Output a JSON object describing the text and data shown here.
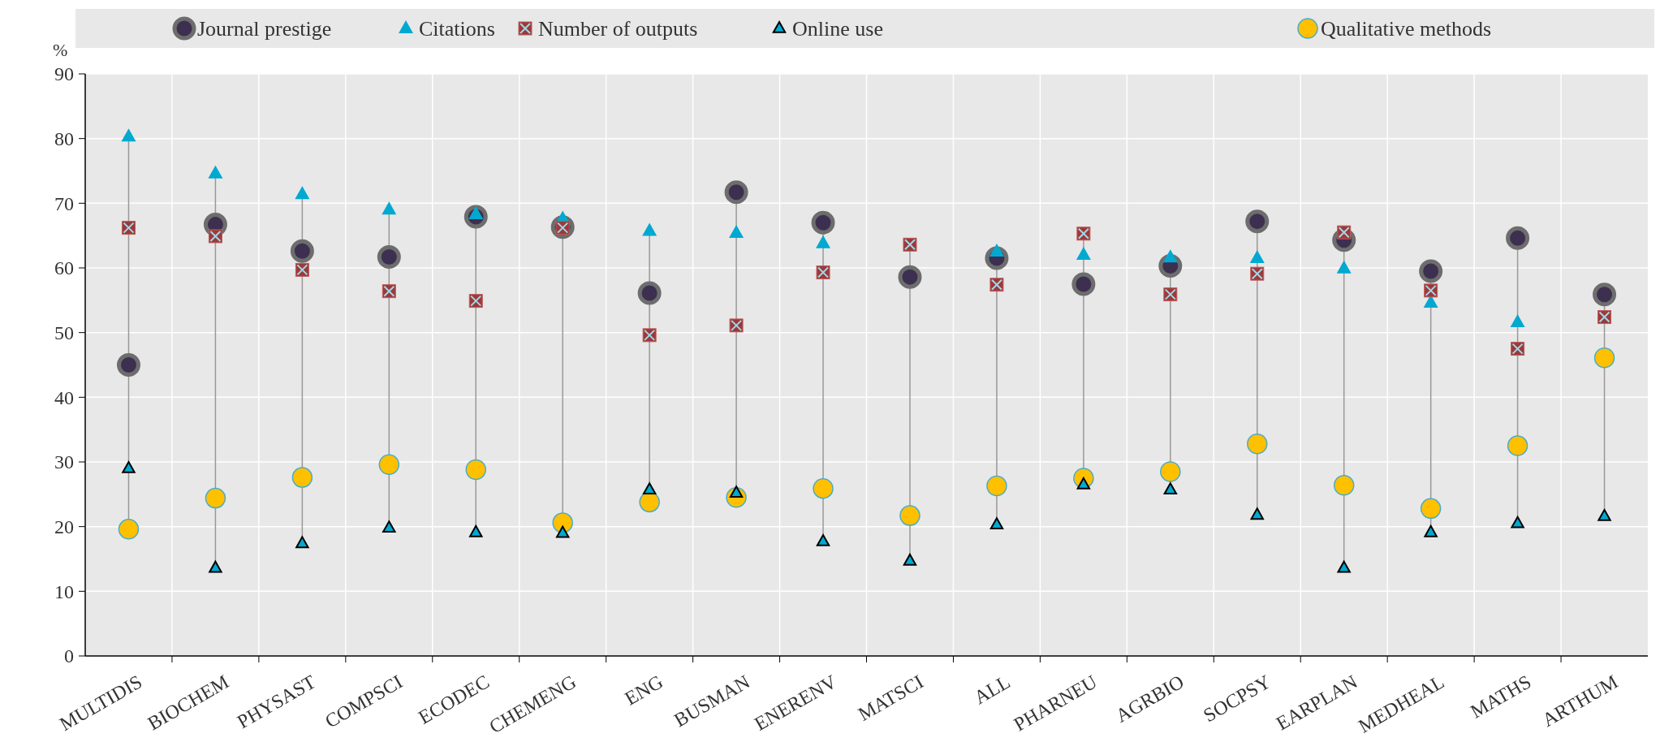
{
  "chart_data": {
    "type": "scatter",
    "ylabel": "%",
    "categories": [
      "MULTIDIS",
      "BIOCHEM",
      "PHYSAST",
      "COMPSCI",
      "ECODEC",
      "CHEMENG",
      "ENG",
      "BUSMAN",
      "ENERENV",
      "MATSCI",
      "ALL",
      "PHARNEU",
      "AGRBIO",
      "SOCPSY",
      "EARPLAN",
      "MEDHEAL",
      "MATHS",
      "ARTHUM"
    ],
    "series": [
      {
        "name": "Journal prestige",
        "color": "#3d2f50",
        "marker": "circle",
        "values": [
          45,
          66.7,
          62.6,
          61.7,
          67.9,
          66.3,
          56.1,
          71.7,
          67,
          58.6,
          61.5,
          57.5,
          60.3,
          67.2,
          64.3,
          59.5,
          64.6,
          55.9
        ]
      },
      {
        "name": "Citations",
        "color": "#00a9d0",
        "marker": "triangle",
        "values": [
          80.3,
          74.6,
          71.4,
          69,
          68.3,
          67.6,
          65.7,
          65.4,
          63.8,
          null,
          62.5,
          62,
          61.6,
          61.5,
          59.9,
          54.6,
          51.6,
          null
        ]
      },
      {
        "name": "Number of outputs",
        "color": "#9b3a3a",
        "marker": "square",
        "values": [
          66.2,
          64.9,
          59.7,
          56.4,
          54.9,
          66.2,
          49.6,
          51.1,
          59.3,
          63.6,
          57.4,
          65.3,
          55.9,
          59.1,
          65.5,
          56.5,
          47.5,
          52.4
        ]
      },
      {
        "name": "Online use",
        "color": "#00a9d0",
        "marker": "triangle",
        "values": [
          29,
          13.6,
          17.4,
          19.8,
          19.1,
          19,
          25.7,
          25.2,
          17.7,
          14.7,
          20.3,
          26.5,
          25.7,
          21.8,
          13.6,
          19.1,
          20.5,
          21.6
        ]
      },
      {
        "name": "Qualitative methods",
        "color": "#ffc000",
        "marker": "circle",
        "values": [
          19.6,
          24.4,
          27.6,
          29.6,
          28.8,
          20.6,
          23.8,
          24.5,
          25.9,
          21.7,
          26.3,
          27.5,
          28.5,
          32.8,
          26.4,
          22.8,
          32.5,
          46.1
        ]
      }
    ],
    "ylim": [
      0,
      90
    ],
    "yticks": [
      0,
      10,
      20,
      30,
      40,
      50,
      60,
      70,
      80,
      90
    ],
    "grid": true,
    "legend": "top"
  }
}
